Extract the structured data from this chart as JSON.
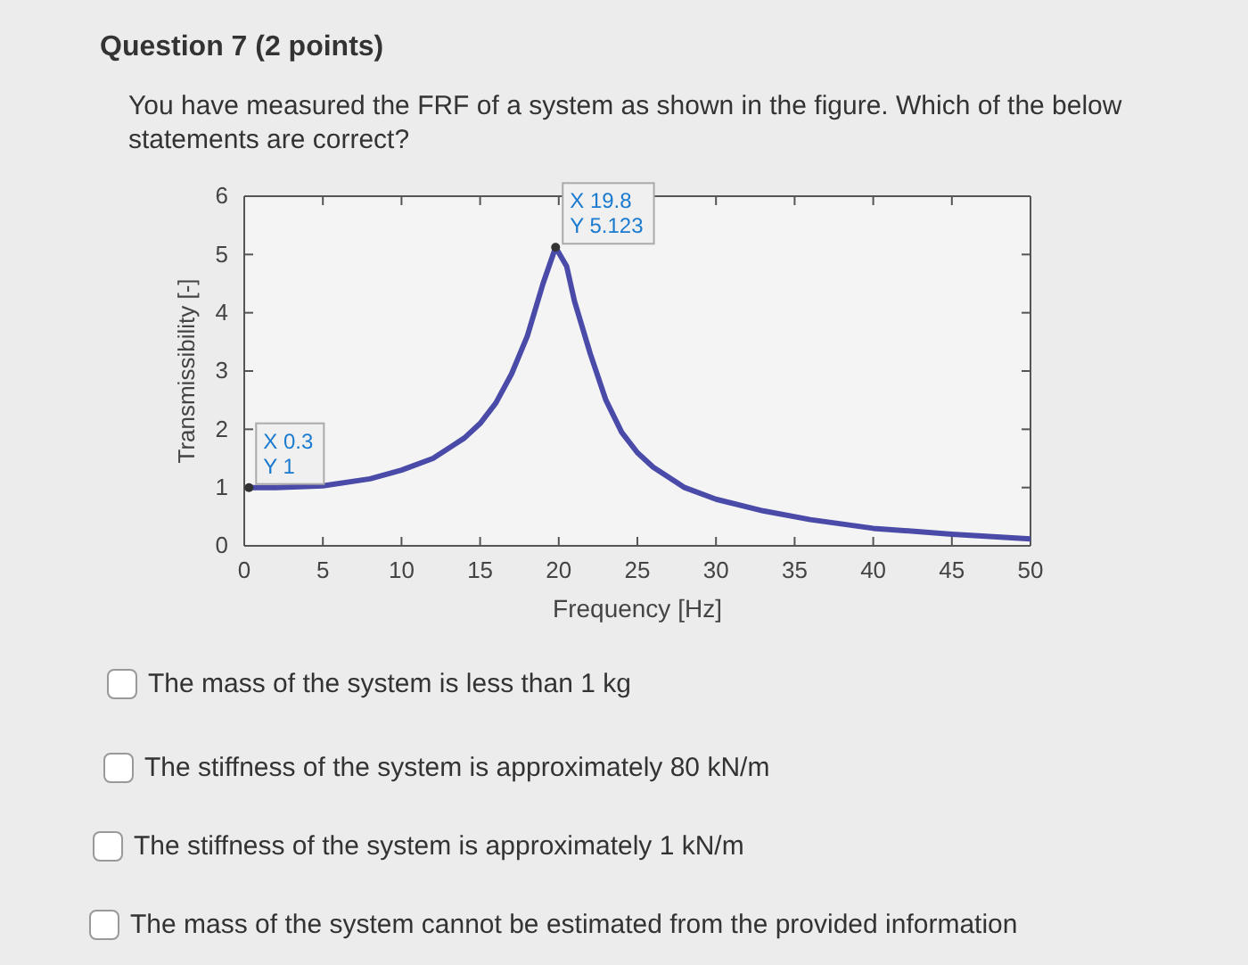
{
  "chart_data": {
    "type": "line",
    "title": "Question 7 (2 points)",
    "subtitle": "You have measured the FRF of a system as shown in the figure. Which of the below statements are correct?",
    "xlabel": "Frequency [Hz]",
    "ylabel": "Transmissibility [-]",
    "series": [
      {
        "color": "#4a4aa8",
        "x": [
          0.3,
          2,
          5,
          8,
          10,
          12,
          14,
          15,
          16,
          17,
          18,
          19,
          19.8,
          20.5,
          21,
          22,
          23,
          24,
          25,
          26,
          28,
          30,
          33,
          36,
          40,
          45,
          50
        ],
        "values": [
          1,
          1,
          1.03,
          1.15,
          1.3,
          1.5,
          1.85,
          2.1,
          2.45,
          2.95,
          3.6,
          4.5,
          5.123,
          4.8,
          4.2,
          3.3,
          2.5,
          1.95,
          1.6,
          1.35,
          1.0,
          0.8,
          0.6,
          0.45,
          0.3,
          0.2,
          0.12
        ]
      }
    ],
    "xlim": [
      0,
      50
    ],
    "xticks": [
      0,
      5,
      10,
      15,
      20,
      25,
      30,
      35,
      40,
      45,
      50
    ],
    "ylim": [
      0,
      6
    ],
    "yticks": [
      0,
      1,
      2,
      3,
      4,
      5,
      6
    ],
    "grid": false,
    "marker": "none",
    "line_style": "solid",
    "annotations": [
      {
        "text": "X 19.8\nY 5.123",
        "x": 19.8,
        "y": 5.123
      },
      {
        "text": "X 0.3\nY 1",
        "x": 0.3,
        "y": 1
      },
      "The mass of the system is less than 1 kg",
      "The stiffness of the system is approximately 80 kN/m",
      "The stiffness of the system is approximately 1 kN/m",
      "The mass of the system cannot be estimated from the provided information"
    ]
  }
}
